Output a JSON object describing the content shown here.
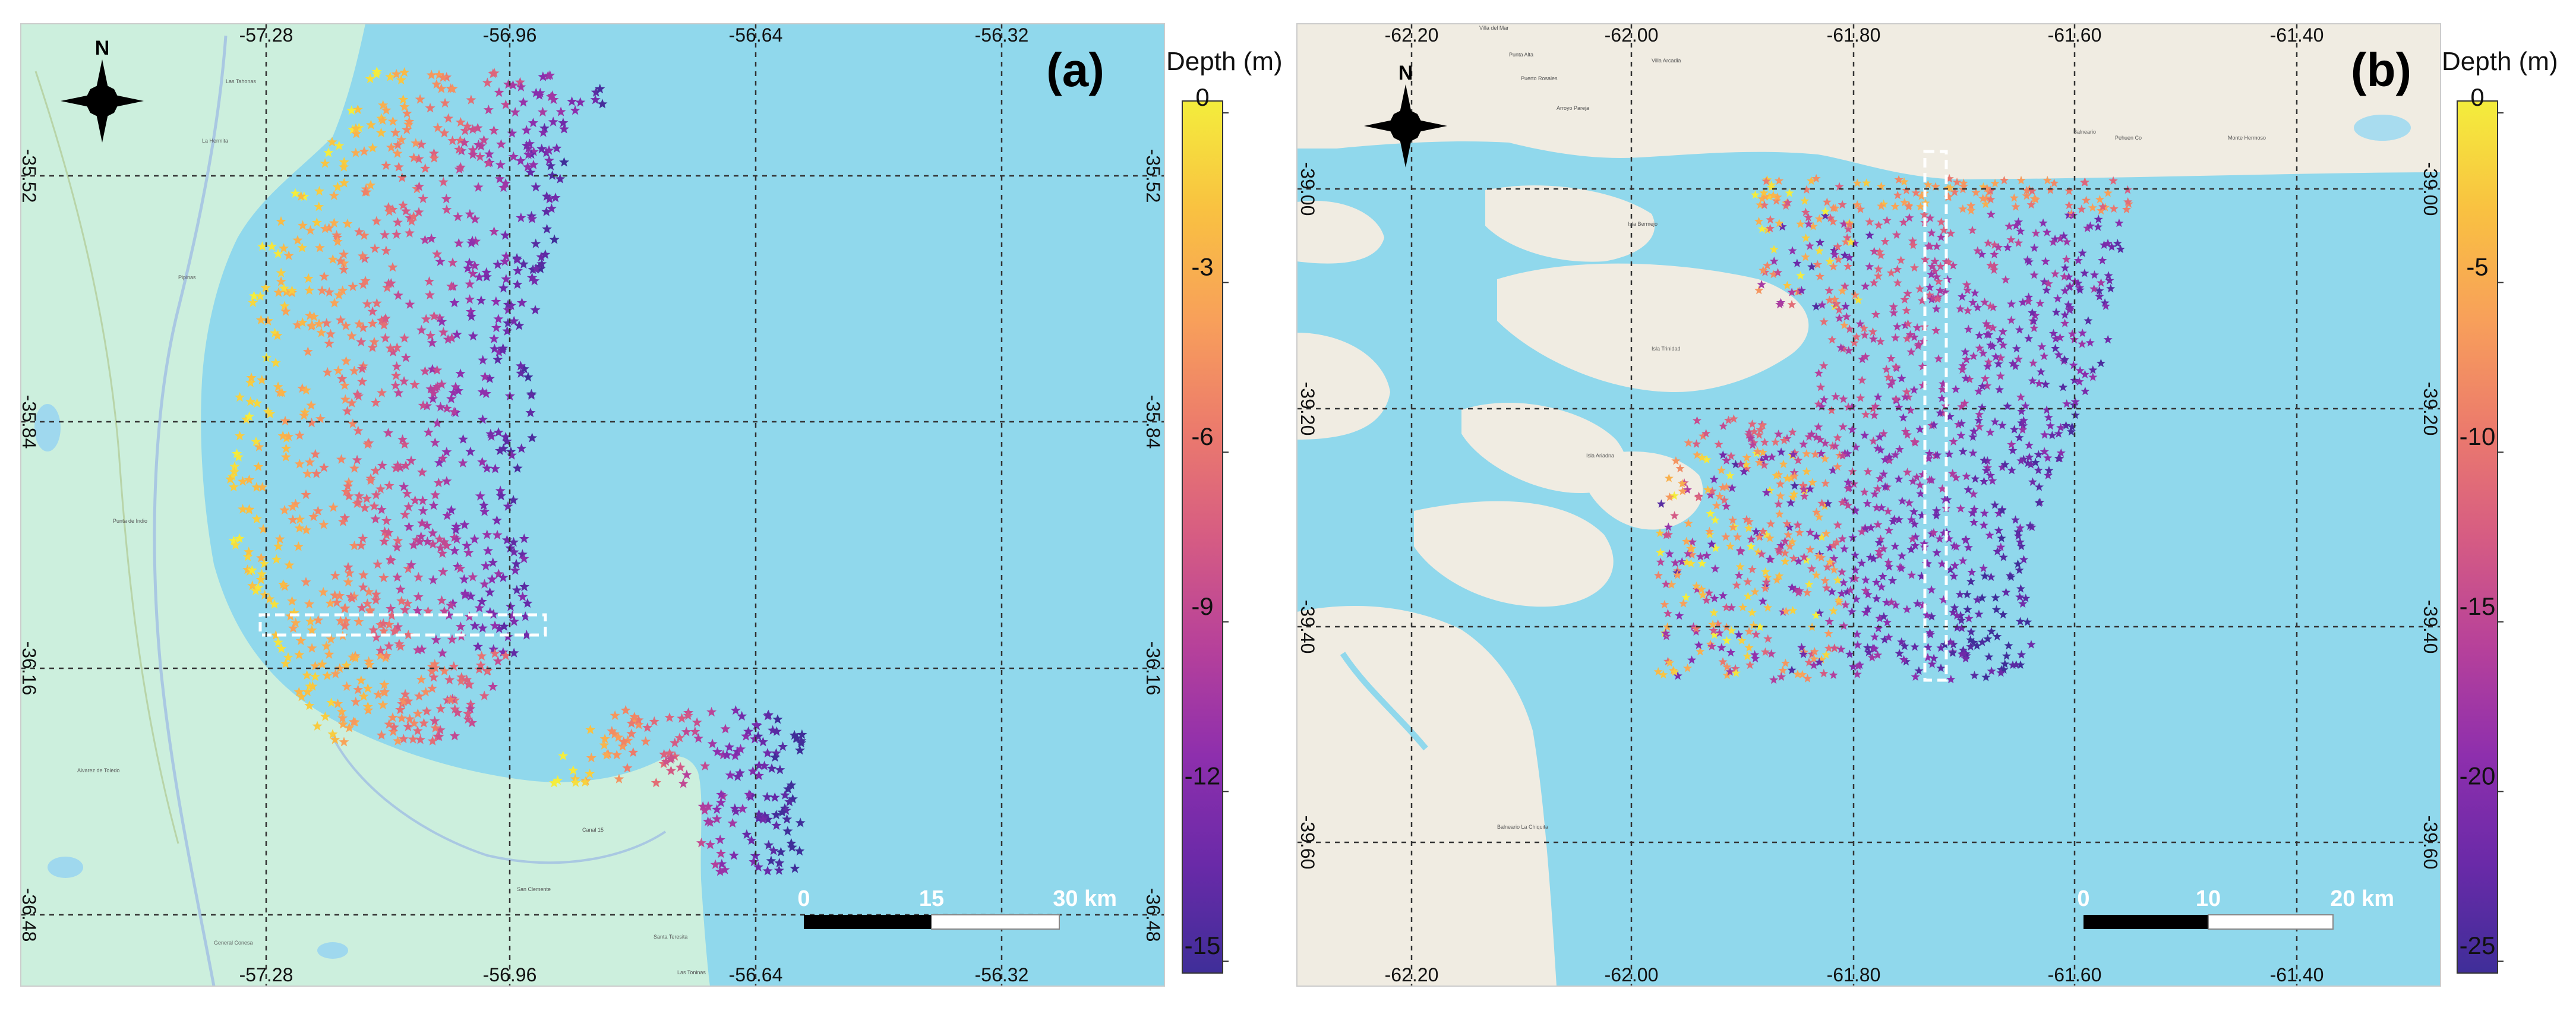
{
  "panels": [
    {
      "id": "a",
      "label": "(a)",
      "north": "N",
      "colorbar": {
        "title": "Depth (m)",
        "ticks": [
          "0",
          "-3",
          "-6",
          "-9",
          "-12",
          "-15"
        ],
        "min": -15,
        "max": 0
      },
      "lon_labels": [
        "-57.28",
        "-56.96",
        "-56.64",
        "-56.32"
      ],
      "lat_labels": [
        "-35.52",
        "-35.84",
        "-36.16",
        "-36.48"
      ],
      "scalebar": [
        "0",
        "15",
        "30 km"
      ],
      "towns": [
        "Las Tahonas",
        "La Hermita",
        "Pipinas",
        "Punta de Indio",
        "Alvarez de Toledo",
        "General Conesa",
        "Canal 15",
        "San Clemente",
        "Santa Teresita",
        "Las Toninas"
      ]
    },
    {
      "id": "b",
      "label": "(b)",
      "north": "N",
      "colorbar": {
        "title": "Depth (m)",
        "ticks": [
          "0",
          "-5",
          "-10",
          "-15",
          "-20",
          "-25"
        ],
        "min": -25,
        "max": 0
      },
      "lon_labels": [
        "-62.20",
        "-62.00",
        "-61.80",
        "-61.60",
        "-61.40"
      ],
      "lat_labels": [
        "-39.00",
        "-39.20",
        "-39.40",
        "-39.60"
      ],
      "scalebar": [
        "0",
        "10",
        "20 km"
      ],
      "towns": [
        "Villa del Mar",
        "Punta Alta",
        "Villa Arcadia",
        "Puerto Rosales",
        "Arroyo Pareja",
        "Isla Bermejo",
        "Isla Trinidad",
        "Isla Ariadna",
        "Balneario La Chiquita",
        "Monte Hermoso",
        "Pehuen Co",
        "Balneario"
      ]
    }
  ],
  "colors": {
    "water": "#90d8ec",
    "land_a": "#ccefdd",
    "land_b": "#f0ece2",
    "grid": "#333333",
    "scale_fill": "#000000",
    "transect": "#ffffff",
    "ramp": [
      "#f4ed3c",
      "#f9c141",
      "#f8a05a",
      "#ec7b6c",
      "#d65c83",
      "#b7419a",
      "#8e2fad",
      "#6a2aa8",
      "#3f2e99"
    ]
  }
}
